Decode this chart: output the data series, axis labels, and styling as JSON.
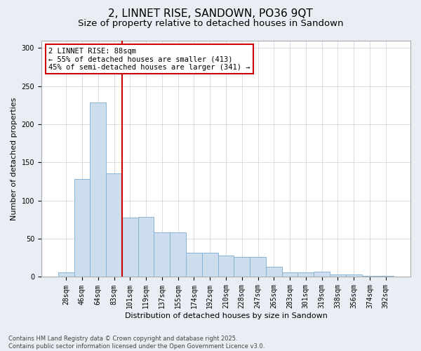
{
  "title1": "2, LINNET RISE, SANDOWN, PO36 9QT",
  "title2": "Size of property relative to detached houses in Sandown",
  "xlabel": "Distribution of detached houses by size in Sandown",
  "ylabel": "Number of detached properties",
  "categories": [
    "28sqm",
    "46sqm",
    "64sqm",
    "83sqm",
    "101sqm",
    "119sqm",
    "137sqm",
    "155sqm",
    "174sqm",
    "192sqm",
    "210sqm",
    "228sqm",
    "247sqm",
    "265sqm",
    "283sqm",
    "301sqm",
    "319sqm",
    "338sqm",
    "356sqm",
    "374sqm",
    "392sqm"
  ],
  "values": [
    6,
    128,
    229,
    136,
    78,
    79,
    58,
    58,
    32,
    32,
    28,
    26,
    26,
    13,
    6,
    6,
    7,
    3,
    3,
    1,
    1
  ],
  "bar_color": "#ccdded",
  "bar_edge_color": "#8ab4d4",
  "annotation_text": "2 LINNET RISE: 88sqm\n← 55% of detached houses are smaller (413)\n45% of semi-detached houses are larger (341) →",
  "annotation_box_color": "#ffffff",
  "annotation_border_color": "#cc0000",
  "vline_color": "#cc0000",
  "ylim": [
    0,
    310
  ],
  "yticks": [
    0,
    50,
    100,
    150,
    200,
    250,
    300
  ],
  "footnote1": "Contains HM Land Registry data © Crown copyright and database right 2025.",
  "footnote2": "Contains public sector information licensed under the Open Government Licence v3.0.",
  "bg_color": "#e8eef4",
  "plot_bg_color": "#ffffff",
  "title_fontsize": 11,
  "subtitle_fontsize": 9.5,
  "tick_fontsize": 7,
  "label_fontsize": 8
}
